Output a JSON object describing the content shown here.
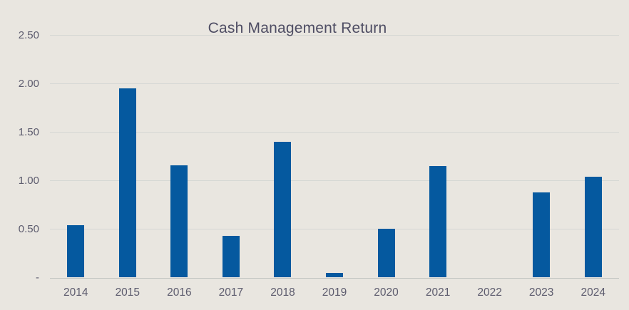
{
  "chart_data": {
    "type": "bar",
    "title": "Cash Management Return",
    "categories": [
      "2014",
      "2015",
      "2016",
      "2017",
      "2018",
      "2019",
      "2020",
      "2021",
      "2022",
      "2023",
      "2024"
    ],
    "values": [
      0.54,
      1.95,
      1.16,
      0.43,
      1.4,
      0.05,
      0.5,
      1.15,
      0.0,
      0.88,
      1.04
    ],
    "series_name": "Cash Management Return",
    "xlabel": "",
    "ylabel": "",
    "ylim": [
      0,
      2.5
    ],
    "ytick_interval": 0.5,
    "ytick_labels_top_to_bottom": [
      "2.50",
      "2.00",
      "1.50",
      "1.00",
      "0.50",
      "-"
    ],
    "grid": true,
    "legend_position": "none",
    "colors": {
      "background": "#e9e6e0",
      "bar": "#05599f",
      "gridline": "#d5d7d4",
      "axis_line": "#c2c5c2",
      "tick_label": "#5d5c6e",
      "title": "#4e4d63"
    }
  }
}
